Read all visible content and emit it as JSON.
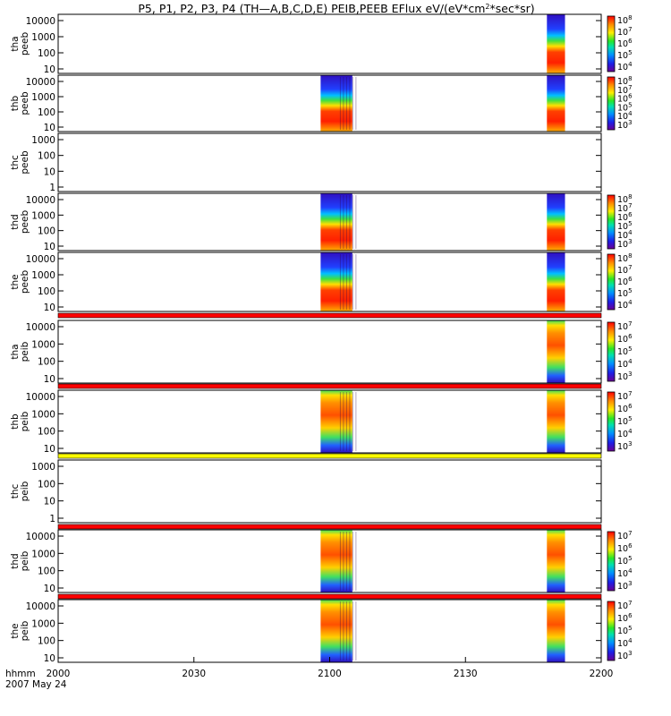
{
  "chart_data": {
    "type": "heatmap",
    "title_html_parts": [
      "P5, P1, P2, P3, P4 (TH—A,B,C,D,E) PEIB,PEEB EFlux eV/(eV*cm",
      "2",
      "*sec*sr)"
    ],
    "title": "P5, P1, P2, P3, P4 (TH—A,B,C,D,E) PEIB,PEEB EFlux eV/(eV*cm2*sec*sr)",
    "x_tick_labels": [
      "2000",
      "2030",
      "2100",
      "2130",
      "2200"
    ],
    "x_time_label": "hhmm",
    "date_label": "2007 May 24",
    "x_range": [
      "2000",
      "2200"
    ],
    "y_scale": "log",
    "colorbar_scale": "log",
    "panels": [
      {
        "probe": "tha",
        "product": "peeb",
        "y_ticks": [
          "10000",
          "1000",
          "100",
          "10"
        ],
        "colorbar_ticks": [
          "8",
          "7",
          "6",
          "5",
          "4"
        ],
        "burst_intervals": [
          [
            "2148",
            "2152"
          ]
        ],
        "has_colorbar": true,
        "flag_bar": null
      },
      {
        "probe": "thb",
        "product": "peeb",
        "y_ticks": [
          "10000",
          "1000",
          "100",
          "10"
        ],
        "colorbar_ticks": [
          "8",
          "7",
          "6",
          "5",
          "4",
          "3"
        ],
        "burst_intervals": [
          [
            "2058",
            "2105"
          ],
          [
            "2148",
            "2152"
          ]
        ],
        "has_colorbar": true,
        "flag_bar": null
      },
      {
        "probe": "thc",
        "product": "peeb",
        "y_ticks": [
          "1000",
          "100",
          "10",
          "1"
        ],
        "colorbar_ticks": [],
        "burst_intervals": [],
        "has_colorbar": false,
        "flag_bar": null
      },
      {
        "probe": "thd",
        "product": "peeb",
        "y_ticks": [
          "10000",
          "1000",
          "100",
          "10"
        ],
        "colorbar_ticks": [
          "8",
          "7",
          "6",
          "5",
          "4",
          "3"
        ],
        "burst_intervals": [
          [
            "2058",
            "2105"
          ],
          [
            "2148",
            "2152"
          ]
        ],
        "has_colorbar": true,
        "flag_bar": null
      },
      {
        "probe": "the",
        "product": "peeb",
        "y_ticks": [
          "10000",
          "1000",
          "100",
          "10"
        ],
        "colorbar_ticks": [
          "8",
          "7",
          "6",
          "5",
          "4"
        ],
        "burst_intervals": [
          [
            "2058",
            "2105"
          ],
          [
            "2148",
            "2152"
          ]
        ],
        "has_colorbar": true,
        "flag_bar": "red"
      },
      {
        "probe": "tha",
        "product": "peib",
        "y_ticks": [
          "10000",
          "1000",
          "100",
          "10"
        ],
        "colorbar_ticks": [
          "7",
          "6",
          "5",
          "4",
          "3"
        ],
        "burst_intervals": [
          [
            "2148",
            "2152"
          ]
        ],
        "has_colorbar": true,
        "flag_bar": "red"
      },
      {
        "probe": "thb",
        "product": "peib",
        "y_ticks": [
          "10000",
          "1000",
          "100",
          "10"
        ],
        "colorbar_ticks": [
          "7",
          "6",
          "5",
          "4",
          "3"
        ],
        "burst_intervals": [
          [
            "2058",
            "2105"
          ],
          [
            "2148",
            "2152"
          ]
        ],
        "has_colorbar": true,
        "flag_bar": "yellow"
      },
      {
        "probe": "thc",
        "product": "peib",
        "y_ticks": [
          "1000",
          "100",
          "10",
          "1"
        ],
        "colorbar_ticks": [],
        "burst_intervals": [],
        "has_colorbar": false,
        "flag_bar": "red"
      },
      {
        "probe": "thd",
        "product": "peib",
        "y_ticks": [
          "10000",
          "1000",
          "100",
          "10"
        ],
        "colorbar_ticks": [
          "7",
          "6",
          "5",
          "4",
          "3"
        ],
        "burst_intervals": [
          [
            "2058",
            "2105"
          ],
          [
            "2148",
            "2152"
          ]
        ],
        "has_colorbar": true,
        "flag_bar": "red"
      },
      {
        "probe": "the",
        "product": "peib",
        "y_ticks": [
          "10000",
          "1000",
          "100",
          "10"
        ],
        "colorbar_ticks": [
          "7",
          "6",
          "5",
          "4",
          "3"
        ],
        "burst_intervals": [
          [
            "2058",
            "2105"
          ],
          [
            "2148",
            "2152"
          ]
        ],
        "has_colorbar": true,
        "flag_bar": null
      }
    ],
    "colors": {
      "flag_red": "#ff0000",
      "flag_yellow": "#ffff00",
      "axis": "#000000"
    }
  }
}
